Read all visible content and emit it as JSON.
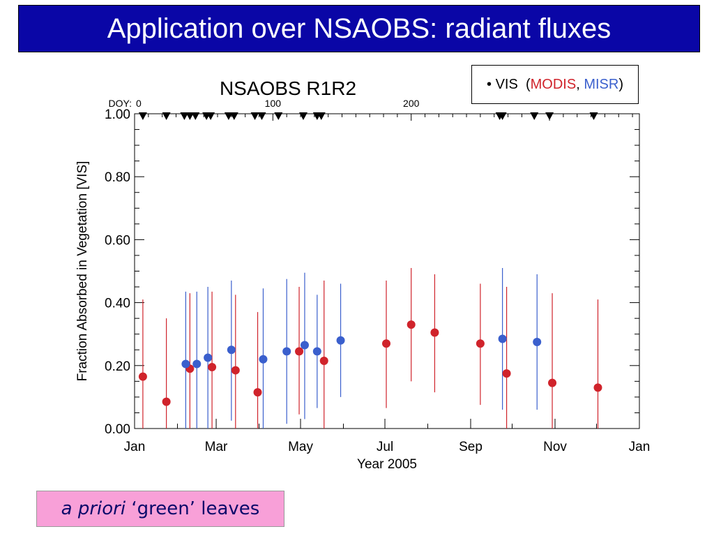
{
  "slide": {
    "title": "Application over NSAOBS: radiant fluxes"
  },
  "legend": {
    "bullet": "•",
    "vis": "VIS",
    "open": "(",
    "modis": "MODIS",
    "comma": ",",
    "misr": "MISR",
    "close": ")",
    "colors": {
      "modis": "#d0232b",
      "misr": "#3a5fcd"
    }
  },
  "note": {
    "italic": "a priori",
    "rest": "‘green’ leaves"
  },
  "chart_data": {
    "type": "scatter",
    "title": "NSAOBS  R1R2",
    "xlabel": "Year 2005",
    "ylabel": "Fraction Absorbed in Vegetation [VIS]",
    "x_unit": "day of year",
    "xlim": [
      1,
      366
    ],
    "ylim": [
      0,
      1
    ],
    "x_ticks": [
      {
        "doy": 1,
        "label": "Jan"
      },
      {
        "doy": 60,
        "label": "Mar"
      },
      {
        "doy": 121,
        "label": "May"
      },
      {
        "doy": 182,
        "label": "Jul"
      },
      {
        "doy": 244,
        "label": "Sep"
      },
      {
        "doy": 305,
        "label": "Nov"
      },
      {
        "doy": 366,
        "label": "Jan"
      }
    ],
    "y_ticks": [
      {
        "v": 0,
        "label": "0.00"
      },
      {
        "v": 0.2,
        "label": "0.20"
      },
      {
        "v": 0.4,
        "label": "0.40"
      },
      {
        "v": 0.6,
        "label": "0.60"
      },
      {
        "v": 0.8,
        "label": "0.80"
      },
      {
        "v": 1.0,
        "label": "1.00"
      }
    ],
    "top_axis": {
      "label": "DOY:",
      "ticks": [
        {
          "doy": 1,
          "label": "0"
        },
        {
          "doy": 101,
          "label": "100"
        },
        {
          "doy": 201,
          "label": "200"
        }
      ]
    },
    "observation_markers_doy": [
      7,
      24,
      37,
      41,
      45,
      53,
      56,
      69,
      73,
      88,
      93,
      105,
      123,
      133,
      136,
      265,
      267,
      290,
      301,
      333
    ],
    "series": [
      {
        "name": "MODIS",
        "color": "#d0232b",
        "points": [
          {
            "doy": 7,
            "y": 0.165,
            "lo": 0.0,
            "hi": 0.41
          },
          {
            "doy": 24,
            "y": 0.085,
            "lo": 0.0,
            "hi": 0.35
          },
          {
            "doy": 41,
            "y": 0.19,
            "lo": 0.0,
            "hi": 0.43
          },
          {
            "doy": 57,
            "y": 0.195,
            "lo": 0.0,
            "hi": 0.435
          },
          {
            "doy": 74,
            "y": 0.185,
            "lo": 0.0,
            "hi": 0.425
          },
          {
            "doy": 90,
            "y": 0.115,
            "lo": 0.0,
            "hi": 0.37
          },
          {
            "doy": 120,
            "y": 0.245,
            "lo": 0.045,
            "hi": 0.45
          },
          {
            "doy": 138,
            "y": 0.215,
            "lo": 0.0,
            "hi": 0.47
          },
          {
            "doy": 183,
            "y": 0.27,
            "lo": 0.065,
            "hi": 0.47
          },
          {
            "doy": 201,
            "y": 0.33,
            "lo": 0.15,
            "hi": 0.51
          },
          {
            "doy": 218,
            "y": 0.305,
            "lo": 0.115,
            "hi": 0.49
          },
          {
            "doy": 251,
            "y": 0.27,
            "lo": 0.075,
            "hi": 0.46
          },
          {
            "doy": 270,
            "y": 0.175,
            "lo": 0.0,
            "hi": 0.45
          },
          {
            "doy": 303,
            "y": 0.145,
            "lo": 0.0,
            "hi": 0.43
          },
          {
            "doy": 336,
            "y": 0.13,
            "lo": 0.0,
            "hi": 0.41
          }
        ]
      },
      {
        "name": "MISR",
        "color": "#3a5fcd",
        "points": [
          {
            "doy": 38,
            "y": 0.205,
            "lo": 0.0,
            "hi": 0.435
          },
          {
            "doy": 46,
            "y": 0.205,
            "lo": 0.0,
            "hi": 0.435
          },
          {
            "doy": 54,
            "y": 0.225,
            "lo": 0.0,
            "hi": 0.45
          },
          {
            "doy": 71,
            "y": 0.25,
            "lo": 0.025,
            "hi": 0.47
          },
          {
            "doy": 94,
            "y": 0.22,
            "lo": 0.0,
            "hi": 0.445
          },
          {
            "doy": 111,
            "y": 0.245,
            "lo": 0.015,
            "hi": 0.475
          },
          {
            "doy": 124,
            "y": 0.265,
            "lo": 0.03,
            "hi": 0.495
          },
          {
            "doy": 133,
            "y": 0.245,
            "lo": 0.065,
            "hi": 0.425
          },
          {
            "doy": 150,
            "y": 0.28,
            "lo": 0.1,
            "hi": 0.46
          },
          {
            "doy": 267,
            "y": 0.285,
            "lo": 0.06,
            "hi": 0.51
          },
          {
            "doy": 292,
            "y": 0.275,
            "lo": 0.06,
            "hi": 0.49
          }
        ]
      }
    ]
  }
}
